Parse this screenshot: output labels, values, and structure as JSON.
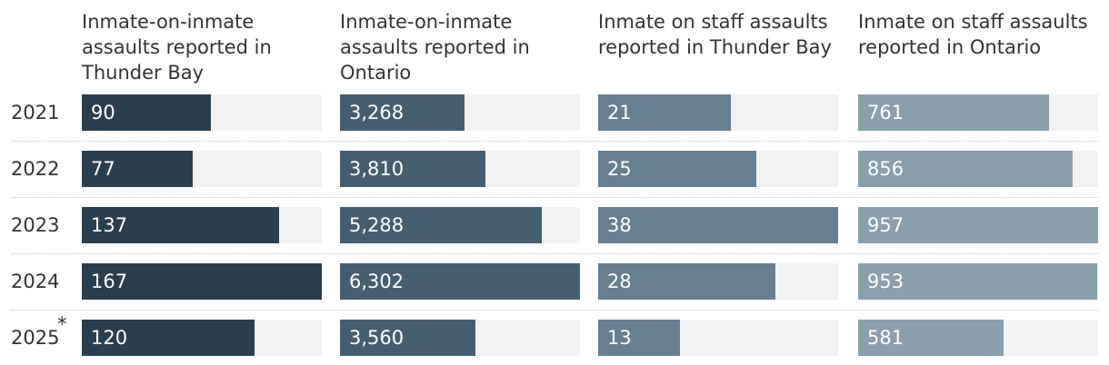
{
  "chart_data": {
    "type": "bar",
    "orientation": "horizontal",
    "categories": [
      "2021",
      "2022",
      "2023",
      "2024",
      "2025"
    ],
    "footnote_marker": {
      "category": "2025",
      "symbol": "*"
    },
    "series": [
      {
        "name": "Inmate-on-inmate assaults reported in Thunder Bay",
        "values": [
          90,
          77,
          137,
          167,
          120
        ],
        "labels": [
          "90",
          "77",
          "137",
          "167",
          "120"
        ],
        "max": 167,
        "color": "#2b3e4d"
      },
      {
        "name": "Inmate-on-inmate assaults reported in Ontario",
        "values": [
          3268,
          3810,
          5288,
          6302,
          3560
        ],
        "labels": [
          "3,268",
          "3,810",
          "5,288",
          "6,302",
          "3,560"
        ],
        "max": 6302,
        "color": "#455f70"
      },
      {
        "name": "Inmate on staff assaults reported in Thunder Bay",
        "values": [
          21,
          25,
          38,
          28,
          13
        ],
        "labels": [
          "21",
          "25",
          "38",
          "28",
          "13"
        ],
        "max": 38,
        "color": "#667f91"
      },
      {
        "name": "Inmate on staff assaults reported in Ontario",
        "values": [
          761,
          856,
          957,
          953,
          581
        ],
        "labels": [
          "761",
          "856",
          "957",
          "953",
          "581"
        ],
        "max": 957,
        "color": "#8a9fab"
      }
    ],
    "track_color": "#f2f2f2",
    "grid": false,
    "legend": "none"
  }
}
